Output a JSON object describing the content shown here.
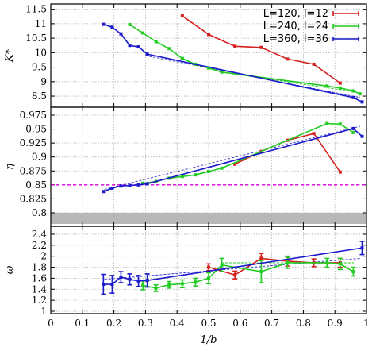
{
  "chart_data": {
    "type": "line",
    "xlabel": "1/b",
    "xlim": [
      0,
      1
    ],
    "xticks": [
      "0",
      "0.1",
      "0.2",
      "0.3",
      "0.4",
      "0.5",
      "0.6",
      "0.7",
      "0.8",
      "0.9",
      "1"
    ],
    "colors": {
      "L120": "#d62020",
      "L240": "#22cc22",
      "L360": "#1a1acc",
      "fit": "#3a3ad8",
      "fit_green": "#22cc22",
      "magenta": "#dd00dd",
      "band": "#b8b8b8"
    },
    "panels": [
      {
        "ylabel": "K*",
        "ylim": [
          8.2,
          11.6
        ],
        "yticks": [
          "8.5",
          "9",
          "9.5",
          "10",
          "10.5",
          "11",
          "11.5"
        ],
        "legend": {
          "placement": "top-right",
          "entries": [
            "L=120, l=12",
            "L=240, l=24",
            "L=360, l=36"
          ]
        },
        "series": [
          {
            "name": "L=120, l=12",
            "color": "#d62020",
            "x": [
              0.4167,
              0.5,
              0.5833,
              0.6667,
              0.75,
              0.8333,
              0.9167
            ],
            "y": [
              11.27,
              10.63,
              10.22,
              10.18,
              9.78,
              9.6,
              8.95
            ]
          },
          {
            "name": "L=240, l=24",
            "color": "#22cc22",
            "x": [
              0.25,
              0.2917,
              0.3333,
              0.375,
              0.4167,
              0.4583,
              0.5,
              0.5417,
              0.875,
              0.9167,
              0.9583,
              0.9792
            ],
            "y": [
              10.97,
              10.68,
              10.38,
              10.14,
              9.8,
              9.6,
              9.47,
              9.33,
              8.85,
              8.78,
              8.68,
              8.58
            ]
          },
          {
            "name": "L=360, l=36",
            "color": "#1a1acc",
            "x": [
              0.1667,
              0.1944,
              0.2222,
              0.25,
              0.2778,
              0.3056,
              0.9583,
              0.9861
            ],
            "y": [
              10.98,
              10.88,
              10.65,
              10.25,
              10.2,
              9.95,
              8.45,
              8.3
            ]
          }
        ],
        "fits": [
          {
            "color": "#3a3ad8",
            "x": [
              0.3,
              0.98
            ],
            "y": [
              9.9,
              8.45
            ]
          },
          {
            "color": "#22cc22",
            "x": [
              0.54,
              0.98
            ],
            "y": [
              9.33,
              8.62
            ]
          }
        ]
      },
      {
        "ylabel": "η",
        "ylim": [
          0.78,
          0.985
        ],
        "yticks": [
          "0.8",
          "0.825",
          "0.85",
          "0.875",
          "0.9",
          "0.925",
          "0.95",
          "0.975"
        ],
        "hline": {
          "y": 0.85,
          "color": "#dd00dd"
        },
        "band": {
          "y0": 0.78,
          "y1": 0.8
        },
        "series": [
          {
            "name": "L=120, l=12",
            "color": "#d62020",
            "x": [
              0.5833,
              0.6667,
              0.75,
              0.8333,
              0.9167
            ],
            "y": [
              0.887,
              0.91,
              0.93,
              0.942,
              0.873
            ]
          },
          {
            "name": "L=240, l=24",
            "color": "#22cc22",
            "x": [
              0.2917,
              0.3333,
              0.375,
              0.4167,
              0.4583,
              0.5,
              0.5417,
              0.875,
              0.9167,
              0.9583
            ],
            "y": [
              0.853,
              0.856,
              0.862,
              0.865,
              0.868,
              0.874,
              0.88,
              0.96,
              0.959,
              0.944
            ]
          },
          {
            "name": "L=360, l=36",
            "color": "#1a1acc",
            "x": [
              0.1667,
              0.1944,
              0.2222,
              0.25,
              0.2778,
              0.3056,
              0.9583,
              0.9861
            ],
            "y": [
              0.838,
              0.844,
              0.848,
              0.849,
              0.85,
              0.852,
              0.951,
              0.937
            ]
          }
        ],
        "fits": [
          {
            "color": "#3a3ad8",
            "x": [
              0.17,
              0.98
            ],
            "y": [
              0.842,
              0.955
            ]
          }
        ]
      },
      {
        "ylabel": "ω",
        "ylim": [
          1,
          2.5
        ],
        "yticks": [
          "1",
          "1.2",
          "1.4",
          "1.6",
          "1.8",
          "2",
          "2.2",
          "2.4"
        ],
        "series": [
          {
            "name": "L=120, l=12",
            "color": "#d62020",
            "x": [
              0.5,
              0.5833,
              0.6667,
              0.75,
              0.8333,
              0.9167
            ],
            "y": [
              1.8,
              1.66,
              1.96,
              1.91,
              1.88,
              1.88
            ],
            "err": [
              0.06,
              0.07,
              0.09,
              0.09,
              0.07,
              0.08
            ]
          },
          {
            "name": "L=240, l=24",
            "color": "#22cc22",
            "x": [
              0.2917,
              0.3333,
              0.375,
              0.4167,
              0.4583,
              0.5,
              0.5417,
              0.6667,
              0.75,
              0.875,
              0.9167,
              0.9583
            ],
            "y": [
              1.47,
              1.42,
              1.48,
              1.5,
              1.53,
              1.6,
              1.84,
              1.72,
              1.88,
              1.88,
              1.86,
              1.72
            ],
            "err": [
              0.08,
              0.06,
              0.06,
              0.07,
              0.07,
              0.1,
              0.12,
              0.2,
              0.1,
              0.08,
              0.1,
              0.08
            ]
          },
          {
            "name": "L=360, l=36",
            "color": "#1a1acc",
            "x": [
              0.1667,
              0.1944,
              0.2222,
              0.25,
              0.2778,
              0.3056,
              0.9861
            ],
            "y": [
              1.49,
              1.49,
              1.62,
              1.58,
              1.55,
              1.56,
              2.15
            ],
            "err": [
              0.18,
              0.16,
              0.1,
              0.1,
              0.1,
              0.12,
              0.12
            ]
          }
        ],
        "fits": [
          {
            "color": "#3a3ad8",
            "x": [
              0.17,
              0.98
            ],
            "y": [
              1.58,
              1.96
            ]
          },
          {
            "color": "#22cc22",
            "x": [
              0.54,
              0.96
            ],
            "y": [
              1.88,
              1.88
            ]
          }
        ]
      }
    ]
  }
}
